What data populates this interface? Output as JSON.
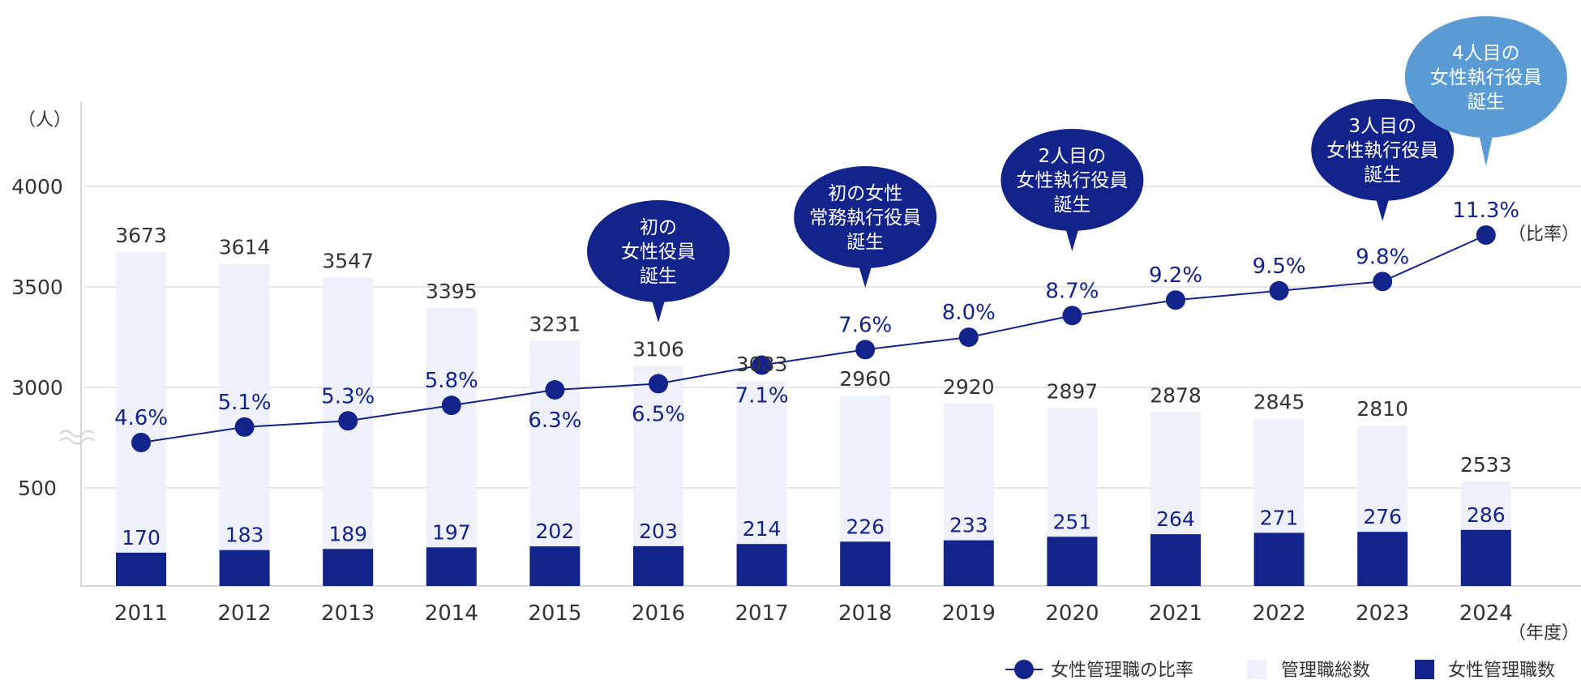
{
  "chart_data": {
    "type": "bar+line",
    "categories": [
      "2011",
      "2012",
      "2013",
      "2014",
      "2015",
      "2016",
      "2017",
      "2018",
      "2019",
      "2020",
      "2021",
      "2022",
      "2023",
      "2024"
    ],
    "series": [
      {
        "name": "管理職総数",
        "kind": "bar",
        "values": [
          3673,
          3614,
          3547,
          3395,
          3231,
          3106,
          3033,
          2960,
          2920,
          2897,
          2878,
          2845,
          2810,
          2533
        ]
      },
      {
        "name": "女性管理職数",
        "kind": "bar",
        "values": [
          170,
          183,
          189,
          197,
          202,
          203,
          214,
          226,
          233,
          251,
          264,
          271,
          276,
          286
        ]
      },
      {
        "name": "女性管理職の比率",
        "kind": "line",
        "unit": "%",
        "values": [
          4.6,
          5.1,
          5.3,
          5.8,
          6.3,
          6.5,
          7.1,
          7.6,
          8.0,
          8.7,
          9.2,
          9.5,
          9.8,
          11.3
        ],
        "labels": [
          "4.6%",
          "5.1%",
          "5.3%",
          "5.8%",
          "6.3%",
          "6.5%",
          "7.1%",
          "7.6%",
          "8.0%",
          "8.7%",
          "9.2%",
          "9.5%",
          "9.8%",
          "11.3%"
        ]
      }
    ],
    "y_ticks": [
      "500",
      "3000",
      "3500",
      "4000"
    ],
    "ylabel": "（人）",
    "xlabel": "（年度）",
    "rate_axis_label": "（比率）",
    "axis_break": true,
    "annotations": [
      {
        "category": "2016",
        "lines": [
          "初の",
          "女性役員",
          "誕生"
        ]
      },
      {
        "category": "2018",
        "lines": [
          "初の女性",
          "常務執行役員",
          "誕生"
        ]
      },
      {
        "category": "2020",
        "lines": [
          "2人目の",
          "女性執行役員",
          "誕生"
        ]
      },
      {
        "category": "2023",
        "lines": [
          "3人目の",
          "女性執行役員",
          "誕生"
        ]
      },
      {
        "category": "2024",
        "lines": [
          "4人目の",
          "女性執行役員",
          "誕生"
        ]
      }
    ],
    "legend": [
      {
        "label": "女性管理職の比率",
        "marker": "line-dot"
      },
      {
        "label": "管理職総数",
        "marker": "light-square"
      },
      {
        "label": "女性管理職数",
        "marker": "dark-square"
      }
    ],
    "legend_position": "bottom-right",
    "colors": {
      "total": "#eef1fa",
      "female": "#13238c",
      "line": "#13238c",
      "bubble": "#13238c",
      "bubble_highlight": "#5b9bd5",
      "grid": "#dddddd"
    }
  }
}
